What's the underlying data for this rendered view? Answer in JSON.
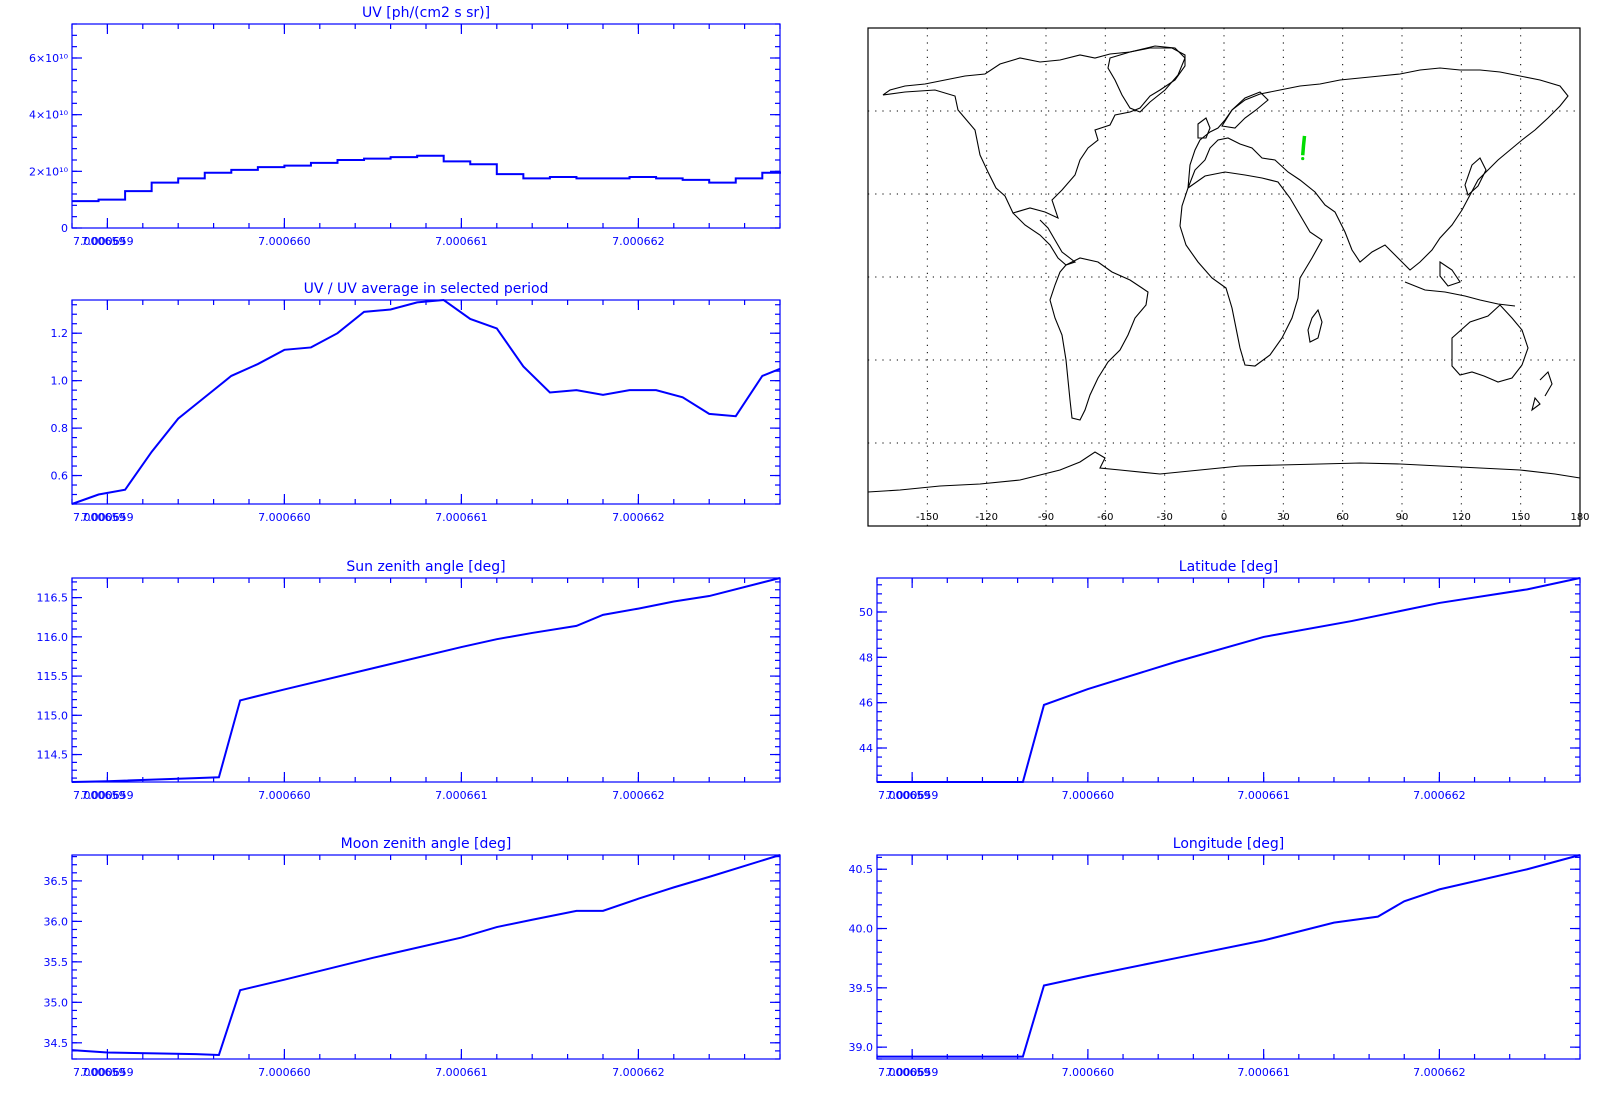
{
  "chart_data": [
    {
      "id": "uv",
      "type": "line",
      "step": true,
      "title": "UV [ph/(cm2 s sr)]",
      "xlim": [
        7.0006588,
        7.0006628
      ],
      "ylim": [
        0,
        72000000000
      ],
      "xticks": [
        7.000659,
        7.00066,
        7.000661,
        7.000662
      ],
      "xtick_labels": [
        "7.000659",
        "7.000660",
        "7.000661",
        "7.000662"
      ],
      "yticks": [
        0,
        20000000000,
        40000000000,
        60000000000
      ],
      "ytick_labels": [
        "0",
        "2×10¹⁰",
        "4×10¹⁰",
        "6×10¹⁰"
      ],
      "x": [
        7.0006588,
        7.00065895,
        7.0006591,
        7.00065925,
        7.0006594,
        7.00065955,
        7.0006597,
        7.00065985,
        7.00066,
        7.00066015,
        7.0006603,
        7.00066045,
        7.0006606,
        7.00066075,
        7.0006609,
        7.00066105,
        7.0006612,
        7.00066135,
        7.0006615,
        7.00066165,
        7.0006618,
        7.00066195,
        7.0006621,
        7.00066225,
        7.0006624,
        7.00066255,
        7.0006627,
        7.0006628
      ],
      "y": [
        9500000000,
        10000000000,
        13000000000,
        16000000000,
        17500000000,
        19500000000,
        20500000000,
        21500000000,
        22000000000,
        23000000000,
        24000000000,
        24500000000,
        25000000000,
        25500000000,
        23500000000,
        22500000000,
        19000000000,
        17500000000,
        18000000000,
        17500000000,
        17500000000,
        18000000000,
        17500000000,
        17000000000,
        16000000000,
        17500000000,
        19500000000,
        20000000000
      ]
    },
    {
      "id": "uvratio",
      "type": "line",
      "title": "UV / UV average in selected period",
      "xlim": [
        7.0006588,
        7.0006628
      ],
      "ylim": [
        0.48,
        1.34
      ],
      "xticks": [
        7.000659,
        7.00066,
        7.000661,
        7.000662
      ],
      "xtick_labels": [
        "7.000659",
        "7.000660",
        "7.000661",
        "7.000662"
      ],
      "yticks": [
        0.6,
        0.8,
        1.0,
        1.2
      ],
      "ytick_labels": [
        "0.6",
        "0.8",
        "1.0",
        "1.2"
      ],
      "x": [
        7.0006588,
        7.00065895,
        7.0006591,
        7.00065925,
        7.0006594,
        7.00065955,
        7.0006597,
        7.00065985,
        7.00066,
        7.00066015,
        7.0006603,
        7.00066045,
        7.0006606,
        7.00066075,
        7.0006609,
        7.00066105,
        7.0006612,
        7.00066135,
        7.0006615,
        7.00066165,
        7.0006618,
        7.00066195,
        7.0006621,
        7.00066225,
        7.0006624,
        7.00066255,
        7.0006627,
        7.0006628
      ],
      "y": [
        0.48,
        0.52,
        0.54,
        0.7,
        0.84,
        0.93,
        1.02,
        1.07,
        1.13,
        1.14,
        1.2,
        1.29,
        1.3,
        1.33,
        1.34,
        1.26,
        1.22,
        1.06,
        0.95,
        0.96,
        0.94,
        0.96,
        0.96,
        0.93,
        0.86,
        0.85,
        1.02,
        1.05
      ]
    },
    {
      "id": "sunzen",
      "type": "line",
      "title": "Sun zenith angle [deg]",
      "xlim": [
        7.0006588,
        7.0006628
      ],
      "ylim": [
        114.15,
        116.75
      ],
      "xticks": [
        7.000659,
        7.00066,
        7.000661,
        7.000662
      ],
      "xtick_labels": [
        "7.000659",
        "7.000660",
        "7.000661",
        "7.000662"
      ],
      "yticks": [
        114.5,
        115.0,
        115.5,
        116.0,
        116.5
      ],
      "ytick_labels": [
        "114.5",
        "115.0",
        "115.5",
        "116.0",
        "116.5"
      ],
      "x": [
        7.0006588,
        7.000659,
        7.0006595,
        7.00065963,
        7.00065975,
        7.00066,
        7.0006605,
        7.000661,
        7.0006612,
        7.0006614,
        7.00066165,
        7.0006618,
        7.000662,
        7.0006622,
        7.0006624,
        7.0006628
      ],
      "y": [
        114.15,
        114.16,
        114.2,
        114.21,
        115.19,
        115.33,
        115.6,
        115.87,
        115.97,
        116.05,
        116.14,
        116.28,
        116.36,
        116.45,
        116.52,
        116.75
      ]
    },
    {
      "id": "moonzen",
      "type": "line",
      "title": "Moon zenith angle [deg]",
      "xlim": [
        7.0006588,
        7.0006628
      ],
      "ylim": [
        34.3,
        36.82
      ],
      "xticks": [
        7.000659,
        7.00066,
        7.000661,
        7.000662
      ],
      "xtick_labels": [
        "7.000659",
        "7.000660",
        "7.000661",
        "7.000662"
      ],
      "yticks": [
        34.5,
        35.0,
        35.5,
        36.0,
        36.5
      ],
      "ytick_labels": [
        "34.5",
        "35.0",
        "35.5",
        "36.0",
        "36.5"
      ],
      "x": [
        7.0006588,
        7.000659,
        7.0006595,
        7.00065963,
        7.00065975,
        7.00066,
        7.0006605,
        7.000661,
        7.0006612,
        7.0006614,
        7.00066165,
        7.0006618,
        7.000662,
        7.0006622,
        7.0006624,
        7.0006628
      ],
      "y": [
        34.41,
        34.38,
        34.36,
        34.35,
        35.15,
        35.28,
        35.55,
        35.8,
        35.93,
        36.02,
        36.13,
        36.13,
        36.28,
        36.42,
        36.55,
        36.82
      ]
    },
    {
      "id": "lat",
      "type": "line",
      "title": "Latitude [deg]",
      "xlim": [
        7.0006588,
        7.0006628
      ],
      "ylim": [
        42.5,
        51.5
      ],
      "xticks": [
        7.000659,
        7.00066,
        7.000661,
        7.000662
      ],
      "xtick_labels": [
        "7.000659",
        "7.000660",
        "7.000661",
        "7.000662"
      ],
      "yticks": [
        44,
        46,
        48,
        50
      ],
      "ytick_labels": [
        "44",
        "46",
        "48",
        "50"
      ],
      "x": [
        7.0006588,
        7.0006595,
        7.00065963,
        7.00065975,
        7.00066,
        7.0006605,
        7.000661,
        7.0006615,
        7.000662,
        7.0006625,
        7.0006628
      ],
      "y": [
        42.5,
        42.5,
        42.5,
        45.9,
        46.6,
        47.8,
        48.9,
        49.6,
        50.4,
        51.0,
        51.5
      ]
    },
    {
      "id": "lon",
      "type": "line",
      "title": "Longitude [deg]",
      "xlim": [
        7.0006588,
        7.0006628
      ],
      "ylim": [
        38.9,
        40.62
      ],
      "xticks": [
        7.000659,
        7.00066,
        7.000661,
        7.000662
      ],
      "xtick_labels": [
        "7.000659",
        "7.000660",
        "7.000661",
        "7.000662"
      ],
      "yticks": [
        39.0,
        39.5,
        40.0,
        40.5
      ],
      "ytick_labels": [
        "39.0",
        "39.5",
        "40.0",
        "40.5"
      ],
      "x": [
        7.0006588,
        7.0006595,
        7.00065963,
        7.00065975,
        7.00066,
        7.0006605,
        7.000661,
        7.0006614,
        7.00066165,
        7.0006618,
        7.000662,
        7.0006625,
        7.0006628
      ],
      "y": [
        38.92,
        38.92,
        38.92,
        39.52,
        39.6,
        39.75,
        39.9,
        40.05,
        40.1,
        40.23,
        40.33,
        40.5,
        40.62
      ]
    }
  ],
  "map": {
    "lon_ticks": [
      -150,
      -120,
      -90,
      -60,
      -30,
      0,
      30,
      60,
      90,
      120,
      150,
      180
    ],
    "lon_tick_labels": [
      "-150",
      "-120",
      "-90",
      "-60",
      "-30",
      "0",
      "30",
      "60",
      "90",
      "120",
      "150",
      "180"
    ],
    "lon_range": [
      -180,
      180
    ],
    "lat_range": [
      -90,
      90
    ],
    "grid_lat": [
      -60,
      -30,
      0,
      30,
      60
    ],
    "track": {
      "lon": [
        40.7,
        40.2,
        39.8
      ],
      "lat": [
        51.0,
        47.5,
        44.0
      ]
    },
    "track_marker": {
      "lon": 39.8,
      "lat": 42.8
    },
    "track_color": "#00dd00"
  },
  "colors": {
    "axis": "#0000ff",
    "series": "#0000ff",
    "coast": "#000000"
  }
}
